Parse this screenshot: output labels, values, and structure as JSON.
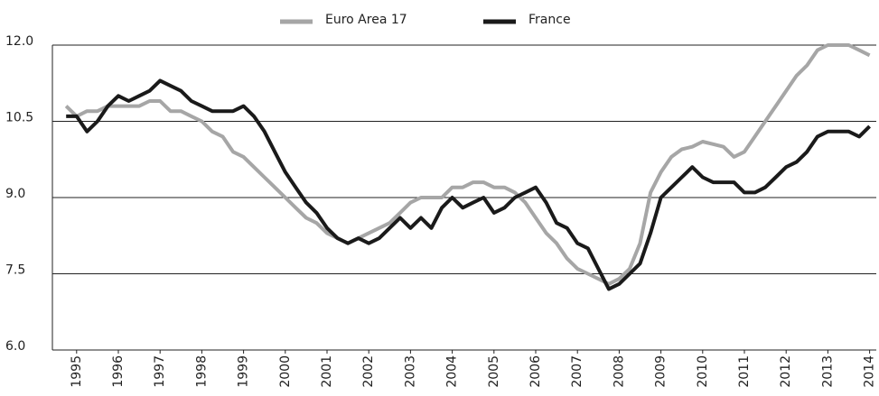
{
  "chart_data": {
    "type": "line",
    "x": [
      1994.75,
      1995,
      1995.25,
      1995.5,
      1995.75,
      1996,
      1996.25,
      1996.5,
      1996.75,
      1997,
      1997.25,
      1997.5,
      1997.75,
      1998,
      1998.25,
      1998.5,
      1998.75,
      1999,
      1999.25,
      1999.5,
      1999.75,
      2000,
      2000.25,
      2000.5,
      2000.75,
      2001,
      2001.25,
      2001.5,
      2001.75,
      2002,
      2002.25,
      2002.5,
      2002.75,
      2003,
      2003.25,
      2003.5,
      2003.75,
      2004,
      2004.25,
      2004.5,
      2004.75,
      2005,
      2005.25,
      2005.5,
      2005.75,
      2006,
      2006.25,
      2006.5,
      2006.75,
      2007,
      2007.25,
      2007.5,
      2007.75,
      2008,
      2008.25,
      2008.5,
      2008.75,
      2009,
      2009.25,
      2009.5,
      2009.75,
      2010,
      2010.25,
      2010.5,
      2010.75,
      2011,
      2011.25,
      2011.5,
      2011.75,
      2012,
      2012.25,
      2012.5,
      2012.75,
      2013,
      2013.25,
      2013.5,
      2013.75,
      2014
    ],
    "series": [
      {
        "name": "Euro Area 17",
        "color": "#a6a6a6",
        "values": [
          10.8,
          10.6,
          10.7,
          10.7,
          10.8,
          10.8,
          10.8,
          10.8,
          10.9,
          10.9,
          10.7,
          10.7,
          10.6,
          10.5,
          10.3,
          10.2,
          9.9,
          9.8,
          9.6,
          9.4,
          9.2,
          9.0,
          8.8,
          8.6,
          8.5,
          8.3,
          8.2,
          8.1,
          8.2,
          8.3,
          8.4,
          8.5,
          8.7,
          8.9,
          9.0,
          9.0,
          9.0,
          9.2,
          9.2,
          9.3,
          9.3,
          9.2,
          9.2,
          9.1,
          8.9,
          8.6,
          8.3,
          8.1,
          7.8,
          7.6,
          7.5,
          7.4,
          7.3,
          7.4,
          7.6,
          8.1,
          9.1,
          9.5,
          9.8,
          9.95,
          10.0,
          10.1,
          10.05,
          10.0,
          9.8,
          9.9,
          10.2,
          10.5,
          10.8,
          11.1,
          11.4,
          11.6,
          11.9,
          12.0,
          12.0,
          12.0,
          11.9,
          11.8
        ]
      },
      {
        "name": "France",
        "color": "#1a1a1a",
        "values": [
          10.6,
          10.6,
          10.3,
          10.5,
          10.8,
          11.0,
          10.9,
          11.0,
          11.1,
          11.3,
          11.2,
          11.1,
          10.9,
          10.8,
          10.7,
          10.7,
          10.7,
          10.8,
          10.6,
          10.3,
          9.9,
          9.5,
          9.2,
          8.9,
          8.7,
          8.4,
          8.2,
          8.1,
          8.2,
          8.1,
          8.2,
          8.4,
          8.6,
          8.4,
          8.6,
          8.4,
          8.8,
          9.0,
          8.8,
          8.9,
          9.0,
          8.7,
          8.8,
          9.0,
          9.1,
          9.2,
          8.9,
          8.5,
          8.4,
          8.1,
          8.0,
          7.6,
          7.2,
          7.3,
          7.5,
          7.7,
          8.3,
          9.0,
          9.2,
          9.4,
          9.6,
          9.4,
          9.3,
          9.3,
          9.3,
          9.1,
          9.1,
          9.2,
          9.4,
          9.6,
          9.7,
          9.9,
          10.2,
          10.3,
          10.3,
          10.3,
          10.2,
          10.4
        ]
      }
    ],
    "xlim": [
      1994.42,
      2014.16
    ],
    "xticks": [
      1995,
      1996,
      1997,
      1998,
      1999,
      2000,
      2001,
      2002,
      2003,
      2004,
      2005,
      2006,
      2007,
      2008,
      2009,
      2010,
      2011,
      2012,
      2013,
      2014
    ],
    "ylim": [
      6,
      12
    ],
    "yticks": [
      {
        "value": 6,
        "label": "6.0"
      },
      {
        "value": 7.5,
        "label": "7.5"
      },
      {
        "value": 9,
        "label": "9.0"
      },
      {
        "value": 10.5,
        "label": "10.5"
      },
      {
        "value": 12,
        "label": "12.0"
      }
    ],
    "grid": true,
    "legend": "top"
  }
}
